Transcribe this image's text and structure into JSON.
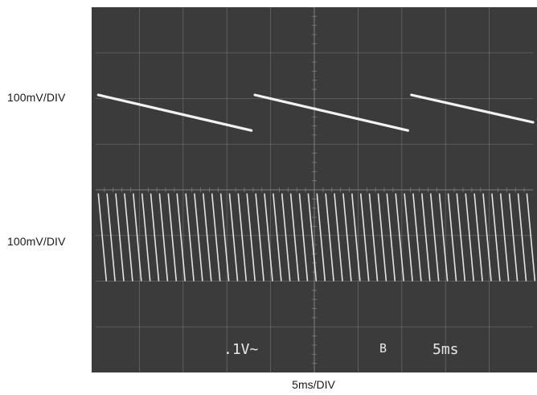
{
  "screen_labels": {
    "channel1_scale": "100mV/DIV",
    "channel2_scale": "100mV/DIV",
    "timebase": "5ms/DIV"
  },
  "readouts": {
    "volts_per_div": ".1V~",
    "mode_glyph": "B",
    "time_per_div": "5ms"
  },
  "colors": {
    "screen_background": "#3b3b3b",
    "graticule": "#8a8a8a",
    "trace": "#f2f2f2"
  },
  "chart_data": [
    {
      "type": "line",
      "trace": "channel-1",
      "scale_label": "100mV/DIV",
      "time_unit": "ms",
      "time_range": [
        0,
        50
      ],
      "value_unit": "div",
      "y_range": [
        -4,
        4
      ],
      "waveform": "sawtooth",
      "segments": [
        {
          "t_start": 0.3,
          "t_end": 17.8,
          "v_start": 2.08,
          "v_end": 1.3
        },
        {
          "t_start": 18.2,
          "t_end": 35.7,
          "v_start": 2.08,
          "v_end": 1.3
        },
        {
          "t_start": 36.1,
          "t_end": 50.0,
          "v_start": 2.08,
          "v_end": 1.48
        }
      ]
    },
    {
      "type": "line",
      "trace": "channel-2",
      "scale_label": "100mV/DIV",
      "time_unit": "ms",
      "time_range": [
        0,
        50
      ],
      "value_unit": "div",
      "y_range": [
        -4,
        4
      ],
      "waveform": "sawtooth",
      "period_ms": 1.0,
      "v_high": -0.08,
      "v_low": -2.0,
      "phase_ms": 0.3
    }
  ]
}
